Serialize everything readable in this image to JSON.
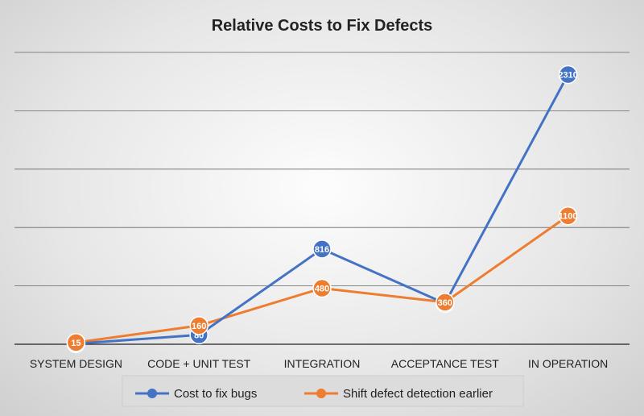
{
  "chart_data": {
    "type": "line",
    "title": "Relative Costs to Fix Defects",
    "xlabel": "",
    "ylabel": "",
    "categories": [
      "SYSTEM DESIGN",
      "CODE + UNIT TEST",
      "INTEGRATION",
      "ACCEPTANCE TEST",
      "IN OPERATION"
    ],
    "ylim": [
      0,
      2500
    ],
    "grid": true,
    "legend_position": "bottom",
    "series": [
      {
        "name": "Cost to fix bugs",
        "color": "#4472C4",
        "values": [
          5,
          80,
          816,
          350,
          2310
        ],
        "labels": [
          "5",
          "80",
          "816",
          "350",
          "2310"
        ]
      },
      {
        "name": "Shift defect detection earlier",
        "color": "#ED7D31",
        "values": [
          15,
          160,
          480,
          360,
          1100
        ],
        "labels": [
          "15",
          "160",
          "480",
          "360",
          "1100"
        ]
      }
    ]
  }
}
